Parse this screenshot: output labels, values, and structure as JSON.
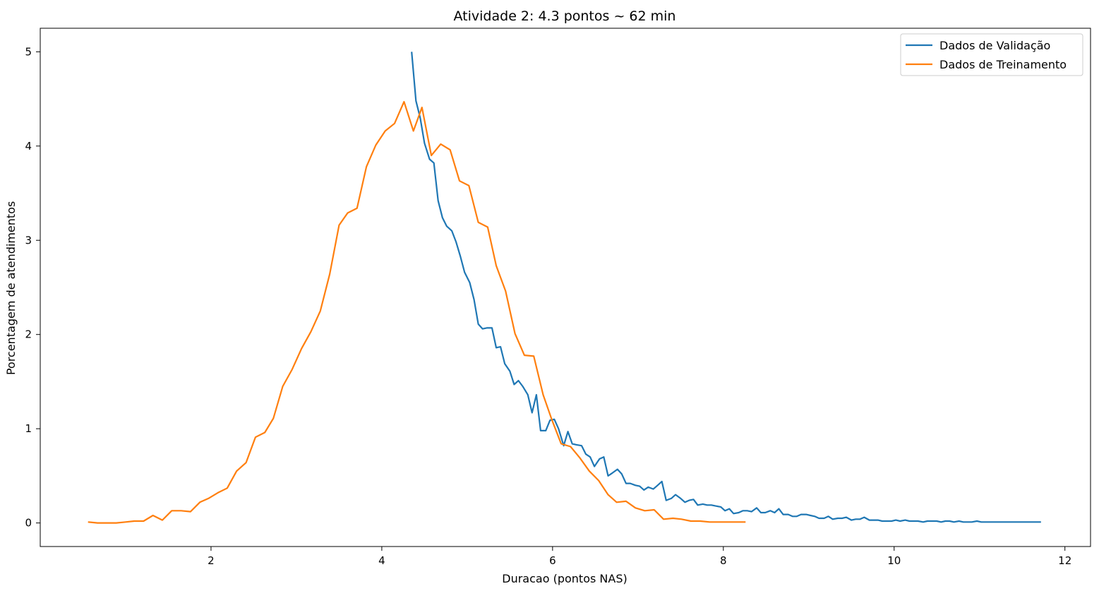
{
  "chart_data": {
    "type": "line",
    "title": "Atividade 2: 4.3 pontos ~ 62 min",
    "xlabel": "Duracao (pontos NAS)",
    "ylabel": "Porcentagem de atendimentos",
    "xlim": [
      0,
      12.3
    ],
    "ylim": [
      -0.25,
      5.25
    ],
    "xticks": [
      2,
      4,
      6,
      8,
      10,
      12
    ],
    "yticks": [
      0,
      1,
      2,
      3,
      4,
      5
    ],
    "grid": false,
    "legend": "top-right",
    "series": [
      {
        "name": "Dados de Validação",
        "color": "#1f77b4",
        "points": [
          [
            4.35,
            5.0
          ],
          [
            4.4,
            4.48
          ],
          [
            4.45,
            4.3
          ],
          [
            4.5,
            4.03
          ],
          [
            4.56,
            3.86
          ],
          [
            4.61,
            3.82
          ],
          [
            4.66,
            3.42
          ],
          [
            4.71,
            3.24
          ],
          [
            4.76,
            3.15
          ],
          [
            4.82,
            3.1
          ],
          [
            4.87,
            2.98
          ],
          [
            4.92,
            2.83
          ],
          [
            4.97,
            2.66
          ],
          [
            5.03,
            2.55
          ],
          [
            5.08,
            2.37
          ],
          [
            5.13,
            2.11
          ],
          [
            5.18,
            2.06
          ],
          [
            5.23,
            2.07
          ],
          [
            5.29,
            2.07
          ],
          [
            5.34,
            1.86
          ],
          [
            5.39,
            1.87
          ],
          [
            5.44,
            1.69
          ],
          [
            5.5,
            1.61
          ],
          [
            5.55,
            1.47
          ],
          [
            5.6,
            1.51
          ],
          [
            5.65,
            1.45
          ],
          [
            5.71,
            1.36
          ],
          [
            5.76,
            1.17
          ],
          [
            5.81,
            1.36
          ],
          [
            5.86,
            0.98
          ],
          [
            5.92,
            0.98
          ],
          [
            5.97,
            1.09
          ],
          [
            6.02,
            1.1
          ],
          [
            6.07,
            1.0
          ],
          [
            6.13,
            0.82
          ],
          [
            6.18,
            0.97
          ],
          [
            6.23,
            0.84
          ],
          [
            6.28,
            0.83
          ],
          [
            6.34,
            0.82
          ],
          [
            6.39,
            0.73
          ],
          [
            6.44,
            0.7
          ],
          [
            6.49,
            0.6
          ],
          [
            6.55,
            0.68
          ],
          [
            6.6,
            0.7
          ],
          [
            6.65,
            0.5
          ],
          [
            6.7,
            0.53
          ],
          [
            6.76,
            0.57
          ],
          [
            6.81,
            0.52
          ],
          [
            6.86,
            0.42
          ],
          [
            6.91,
            0.42
          ],
          [
            6.97,
            0.4
          ],
          [
            7.02,
            0.39
          ],
          [
            7.07,
            0.35
          ],
          [
            7.12,
            0.38
          ],
          [
            7.18,
            0.36
          ],
          [
            7.23,
            0.4
          ],
          [
            7.28,
            0.44
          ],
          [
            7.33,
            0.24
          ],
          [
            7.39,
            0.26
          ],
          [
            7.44,
            0.3
          ],
          [
            7.5,
            0.26
          ],
          [
            7.55,
            0.22
          ],
          [
            7.6,
            0.24
          ],
          [
            7.65,
            0.25
          ],
          [
            7.7,
            0.19
          ],
          [
            7.76,
            0.2
          ],
          [
            7.81,
            0.19
          ],
          [
            7.86,
            0.19
          ],
          [
            7.91,
            0.18
          ],
          [
            7.97,
            0.17
          ],
          [
            8.02,
            0.13
          ],
          [
            8.07,
            0.15
          ],
          [
            8.12,
            0.1
          ],
          [
            8.18,
            0.11
          ],
          [
            8.23,
            0.13
          ],
          [
            8.28,
            0.13
          ],
          [
            8.33,
            0.12
          ],
          [
            8.39,
            0.16
          ],
          [
            8.44,
            0.11
          ],
          [
            8.49,
            0.11
          ],
          [
            8.55,
            0.13
          ],
          [
            8.6,
            0.11
          ],
          [
            8.65,
            0.15
          ],
          [
            8.7,
            0.09
          ],
          [
            8.76,
            0.09
          ],
          [
            8.81,
            0.07
          ],
          [
            8.86,
            0.07
          ],
          [
            8.91,
            0.09
          ],
          [
            8.97,
            0.09
          ],
          [
            9.02,
            0.08
          ],
          [
            9.07,
            0.07
          ],
          [
            9.12,
            0.05
          ],
          [
            9.18,
            0.05
          ],
          [
            9.23,
            0.07
          ],
          [
            9.28,
            0.04
          ],
          [
            9.34,
            0.05
          ],
          [
            9.39,
            0.05
          ],
          [
            9.44,
            0.06
          ],
          [
            9.5,
            0.03
          ],
          [
            9.55,
            0.04
          ],
          [
            9.6,
            0.04
          ],
          [
            9.65,
            0.06
          ],
          [
            9.71,
            0.03
          ],
          [
            9.76,
            0.03
          ],
          [
            9.81,
            0.03
          ],
          [
            9.86,
            0.02
          ],
          [
            9.92,
            0.02
          ],
          [
            9.97,
            0.02
          ],
          [
            10.02,
            0.03
          ],
          [
            10.07,
            0.02
          ],
          [
            10.13,
            0.03
          ],
          [
            10.18,
            0.02
          ],
          [
            10.23,
            0.02
          ],
          [
            10.28,
            0.02
          ],
          [
            10.34,
            0.01
          ],
          [
            10.39,
            0.02
          ],
          [
            10.44,
            0.02
          ],
          [
            10.5,
            0.02
          ],
          [
            10.55,
            0.01
          ],
          [
            10.6,
            0.02
          ],
          [
            10.65,
            0.02
          ],
          [
            10.7,
            0.01
          ],
          [
            10.76,
            0.02
          ],
          [
            10.81,
            0.01
          ],
          [
            10.86,
            0.01
          ],
          [
            10.91,
            0.01
          ],
          [
            10.97,
            0.02
          ],
          [
            11.02,
            0.01
          ],
          [
            11.07,
            0.01
          ],
          [
            11.12,
            0.01
          ],
          [
            11.18,
            0.01
          ],
          [
            11.23,
            0.01
          ],
          [
            11.28,
            0.01
          ],
          [
            11.34,
            0.01
          ],
          [
            11.39,
            0.01
          ],
          [
            11.44,
            0.01
          ],
          [
            11.5,
            0.01
          ],
          [
            11.55,
            0.01
          ],
          [
            11.6,
            0.01
          ],
          [
            11.65,
            0.01
          ],
          [
            11.72,
            0.01
          ]
        ]
      },
      {
        "name": "Dados de Treinamento",
        "color": "#ff7f0e",
        "points": [
          [
            0.56,
            0.01
          ],
          [
            0.67,
            0.0
          ],
          [
            0.78,
            0.0
          ],
          [
            0.89,
            0.0
          ],
          [
            1.0,
            0.01
          ],
          [
            1.1,
            0.02
          ],
          [
            1.21,
            0.02
          ],
          [
            1.32,
            0.08
          ],
          [
            1.43,
            0.03
          ],
          [
            1.54,
            0.13
          ],
          [
            1.65,
            0.13
          ],
          [
            1.76,
            0.12
          ],
          [
            1.87,
            0.22
          ],
          [
            1.97,
            0.26
          ],
          [
            2.08,
            0.32
          ],
          [
            2.19,
            0.37
          ],
          [
            2.3,
            0.55
          ],
          [
            2.41,
            0.64
          ],
          [
            2.52,
            0.91
          ],
          [
            2.63,
            0.96
          ],
          [
            2.73,
            1.11
          ],
          [
            2.84,
            1.45
          ],
          [
            2.95,
            1.63
          ],
          [
            3.06,
            1.85
          ],
          [
            3.17,
            2.03
          ],
          [
            3.28,
            2.25
          ],
          [
            3.39,
            2.64
          ],
          [
            3.5,
            3.16
          ],
          [
            3.6,
            3.29
          ],
          [
            3.71,
            3.34
          ],
          [
            3.82,
            3.78
          ],
          [
            3.93,
            4.01
          ],
          [
            4.04,
            4.16
          ],
          [
            4.15,
            4.24
          ],
          [
            4.26,
            4.47
          ],
          [
            4.37,
            4.16
          ],
          [
            4.47,
            4.41
          ],
          [
            4.58,
            3.9
          ],
          [
            4.69,
            4.02
          ],
          [
            4.8,
            3.96
          ],
          [
            4.91,
            3.63
          ],
          [
            5.02,
            3.58
          ],
          [
            5.13,
            3.19
          ],
          [
            5.24,
            3.14
          ],
          [
            5.34,
            2.73
          ],
          [
            5.45,
            2.46
          ],
          [
            5.56,
            2.01
          ],
          [
            5.67,
            1.78
          ],
          [
            5.78,
            1.77
          ],
          [
            5.89,
            1.36
          ],
          [
            5.99,
            1.1
          ],
          [
            6.1,
            0.84
          ],
          [
            6.21,
            0.81
          ],
          [
            6.32,
            0.69
          ],
          [
            6.43,
            0.55
          ],
          [
            6.54,
            0.45
          ],
          [
            6.65,
            0.3
          ],
          [
            6.75,
            0.22
          ],
          [
            6.86,
            0.23
          ],
          [
            6.97,
            0.16
          ],
          [
            7.08,
            0.13
          ],
          [
            7.19,
            0.14
          ],
          [
            7.3,
            0.04
          ],
          [
            7.41,
            0.05
          ],
          [
            7.51,
            0.04
          ],
          [
            7.62,
            0.02
          ],
          [
            7.73,
            0.02
          ],
          [
            7.84,
            0.01
          ],
          [
            7.95,
            0.01
          ],
          [
            8.06,
            0.01
          ],
          [
            8.17,
            0.01
          ],
          [
            8.26,
            0.01
          ]
        ]
      }
    ]
  }
}
